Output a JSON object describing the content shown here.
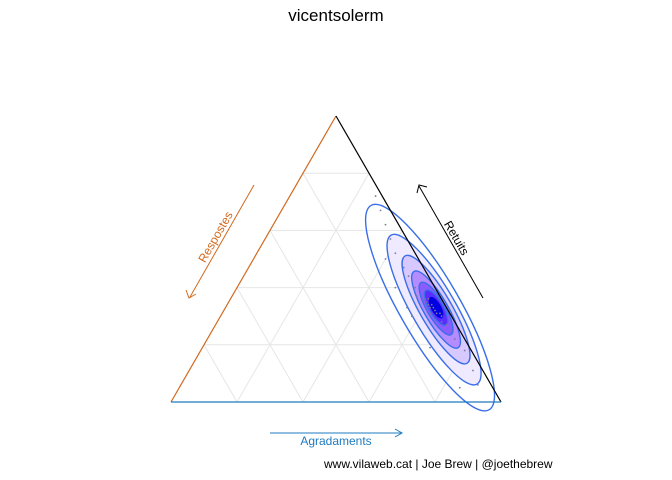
{
  "chart_data": {
    "type": "ternary-density",
    "title": "vicentsolerm",
    "axes": {
      "left": {
        "label": "Respostes",
        "color": "#d2691e"
      },
      "right": {
        "label": "Retuits",
        "color": "#000000"
      },
      "bottom": {
        "label": "Agradaments",
        "color": "#1f7bbf"
      }
    },
    "grid_steps": [
      0.2,
      0.4,
      0.6,
      0.8
    ],
    "density_peak": {
      "Agradaments": 0.62,
      "Retuits": 0.33,
      "Respostes": 0.05
    },
    "points": [
      {
        "a": 0.56,
        "r": 0.37,
        "p": 0.07
      },
      {
        "a": 0.58,
        "r": 0.37,
        "p": 0.05
      },
      {
        "a": 0.6,
        "r": 0.35,
        "p": 0.05
      },
      {
        "a": 0.61,
        "r": 0.34,
        "p": 0.05
      },
      {
        "a": 0.62,
        "r": 0.33,
        "p": 0.05
      },
      {
        "a": 0.63,
        "r": 0.33,
        "p": 0.04
      },
      {
        "a": 0.64,
        "r": 0.32,
        "p": 0.04
      },
      {
        "a": 0.65,
        "r": 0.31,
        "p": 0.04
      },
      {
        "a": 0.6,
        "r": 0.36,
        "p": 0.04
      },
      {
        "a": 0.62,
        "r": 0.34,
        "p": 0.04
      },
      {
        "a": 0.59,
        "r": 0.36,
        "p": 0.05
      },
      {
        "a": 0.66,
        "r": 0.31,
        "p": 0.03
      },
      {
        "a": 0.67,
        "r": 0.3,
        "p": 0.03
      },
      {
        "a": 0.7,
        "r": 0.27,
        "p": 0.03
      },
      {
        "a": 0.72,
        "r": 0.25,
        "p": 0.03
      },
      {
        "a": 0.75,
        "r": 0.22,
        "p": 0.03
      },
      {
        "a": 0.8,
        "r": 0.18,
        "p": 0.02
      },
      {
        "a": 0.86,
        "r": 0.11,
        "p": 0.03
      },
      {
        "a": 0.9,
        "r": 0.06,
        "p": 0.04
      },
      {
        "a": 0.5,
        "r": 0.44,
        "p": 0.06
      },
      {
        "a": 0.47,
        "r": 0.47,
        "p": 0.06
      },
      {
        "a": 0.42,
        "r": 0.52,
        "p": 0.06
      },
      {
        "a": 0.38,
        "r": 0.57,
        "p": 0.05
      },
      {
        "a": 0.34,
        "r": 0.62,
        "p": 0.04
      },
      {
        "a": 0.3,
        "r": 0.67,
        "p": 0.03
      },
      {
        "a": 0.26,
        "r": 0.72,
        "p": 0.02
      },
      {
        "a": 0.4,
        "r": 0.5,
        "p": 0.1
      },
      {
        "a": 0.48,
        "r": 0.4,
        "p": 0.12
      },
      {
        "a": 0.55,
        "r": 0.33,
        "p": 0.12
      },
      {
        "a": 0.58,
        "r": 0.3,
        "p": 0.12
      },
      {
        "a": 0.69,
        "r": 0.19,
        "p": 0.12
      },
      {
        "a": 0.85,
        "r": 0.05,
        "p": 0.1
      },
      {
        "a": 0.54,
        "r": 0.4,
        "p": 0.06
      },
      {
        "a": 0.57,
        "r": 0.39,
        "p": 0.04
      },
      {
        "a": 0.63,
        "r": 0.31,
        "p": 0.06
      },
      {
        "a": 0.68,
        "r": 0.28,
        "p": 0.04
      }
    ]
  },
  "footer": {
    "credit": "www.vilaweb.cat | Joe Brew | @joethebrew"
  },
  "colors": {
    "grid": "#e6e6e6",
    "contour": "#3a6ee8",
    "fill_low": "#ececfe",
    "fill_high": "#0000e0"
  }
}
